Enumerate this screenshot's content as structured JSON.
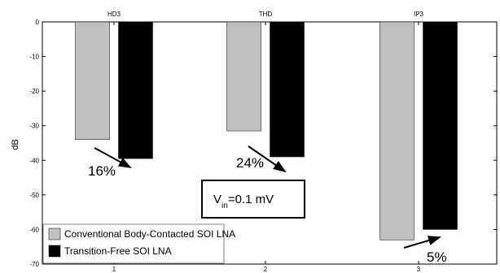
{
  "chart_data": {
    "type": "bar",
    "categories_top": [
      "HD3",
      "THD",
      "IP3"
    ],
    "x_ticks": [
      "1",
      "2",
      "3"
    ],
    "ylabel": "dB",
    "ylim": [
      -70,
      0
    ],
    "yticks": [
      0,
      -10,
      -20,
      -30,
      -40,
      -50,
      -60,
      -70
    ],
    "series": [
      {
        "name": "Conventional Body-Contacted SOI LNA",
        "color": "#c0c0c0",
        "values": [
          -34,
          -31.5,
          -63
        ]
      },
      {
        "name": "Transition-Free SOI LNA",
        "color": "#000000",
        "values": [
          -39.5,
          -39,
          -60
        ]
      }
    ],
    "annotations": {
      "pct": [
        "16%",
        "24%",
        "5%"
      ],
      "vin_main": "V",
      "vin_sub": "in",
      "vin_rest": "=0.1 mV"
    },
    "grid": false,
    "legend_position": "bottom-left"
  }
}
